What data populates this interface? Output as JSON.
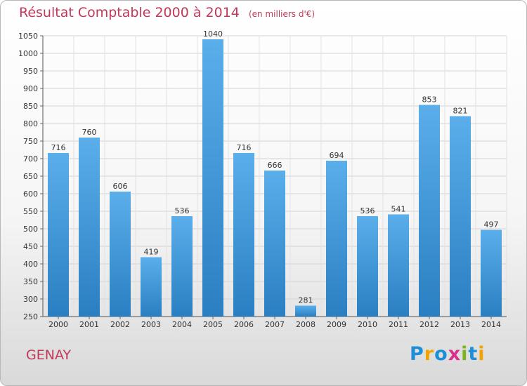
{
  "header": {
    "title": "Résultat Comptable 2000 à 2014",
    "subtitle": "(en milliers d'€)"
  },
  "footer": {
    "commune": "GENAY",
    "logo_text": "Proxiti"
  },
  "colors": {
    "title": "#c0395a",
    "bar_top": "#5aaeea",
    "bar_bottom": "#2a7fc2",
    "logo": [
      "#1c8fd6",
      "#f2a300",
      "#1c8fd6",
      "#d9308c",
      "#7bb41f",
      "#1c8fd6",
      "#f2a300"
    ]
  },
  "chart_data": {
    "type": "bar",
    "title": "Résultat Comptable 2000 à 2014",
    "subtitle": "(en milliers d'€)",
    "categories": [
      "2000",
      "2001",
      "2002",
      "2003",
      "2004",
      "2005",
      "2006",
      "2007",
      "2008",
      "2009",
      "2010",
      "2011",
      "2012",
      "2013",
      "2014"
    ],
    "values": [
      716,
      760,
      606,
      419,
      536,
      1040,
      716,
      666,
      281,
      694,
      536,
      541,
      853,
      821,
      497
    ],
    "ylim": [
      250,
      1050
    ],
    "yticks": [
      250,
      300,
      350,
      400,
      450,
      500,
      550,
      600,
      650,
      700,
      750,
      800,
      850,
      900,
      950,
      1000,
      1050
    ],
    "grid": true,
    "data_labels": true
  }
}
